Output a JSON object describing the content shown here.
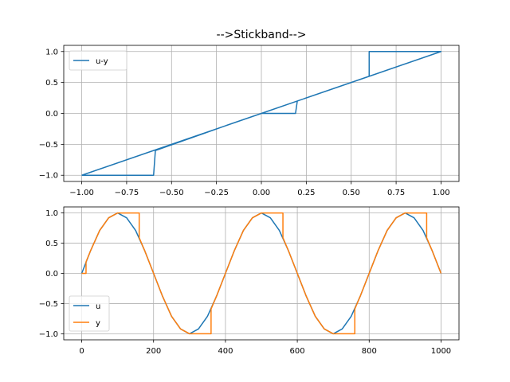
{
  "figure": {
    "title": "-->Stickband-->"
  },
  "colors": {
    "u": "#1f77b4",
    "y": "#ff7f0e",
    "grid": "#b0b0b0"
  },
  "chart_data": [
    {
      "type": "line",
      "title": "-->Stickband-->",
      "xlabel": "",
      "ylabel": "",
      "xlim": [
        -1.1,
        1.1
      ],
      "ylim": [
        -1.1,
        1.1
      ],
      "xticks": [
        "−1.00",
        "−0.75",
        "−0.50",
        "−0.25",
        "0.00",
        "0.25",
        "0.50",
        "0.75",
        "1.00"
      ],
      "yticks": [
        "−1.0",
        "−0.5",
        "0.0",
        "0.5",
        "1.0"
      ],
      "xtick_values": [
        -1.0,
        -0.75,
        -0.5,
        -0.25,
        0.0,
        0.25,
        0.5,
        0.75,
        1.0
      ],
      "ytick_values": [
        -1.0,
        -0.5,
        0.0,
        0.5,
        1.0
      ],
      "grid": true,
      "legend": "top-left",
      "series": [
        {
          "name": "u-y",
          "color": "#1f77b4",
          "x": [
            -1.0,
            -0.6,
            -0.59,
            -0.2,
            0.0,
            0.19,
            0.2,
            0.6,
            0.6,
            1.0,
            1.0,
            0.6,
            0.59,
            0.2,
            0.0,
            -0.19,
            -0.2,
            -0.6,
            -0.6,
            -1.0
          ],
          "y": [
            -1.0,
            -1.0,
            -0.6,
            -0.2,
            0.0,
            0.0,
            0.2,
            0.6,
            1.0,
            1.0,
            1.0,
            0.6,
            0.59,
            0.2,
            0.0,
            -0.19,
            -0.2,
            -0.6,
            -0.6,
            -1.0
          ]
        }
      ]
    },
    {
      "type": "line",
      "title": "",
      "xlabel": "",
      "ylabel": "",
      "xlim": [
        -50,
        1050
      ],
      "ylim": [
        -1.1,
        1.1
      ],
      "xticks": [
        "0",
        "200",
        "400",
        "600",
        "800",
        "1000"
      ],
      "yticks": [
        "−1.0",
        "−0.5",
        "0.0",
        "0.5",
        "1.0"
      ],
      "xtick_values": [
        0,
        200,
        400,
        600,
        800,
        1000
      ],
      "ytick_values": [
        -1.0,
        -0.5,
        0.0,
        0.5,
        1.0
      ],
      "grid": true,
      "legend": "bottom-left",
      "series": [
        {
          "name": "u",
          "color": "#1f77b4",
          "x": [
            0,
            25,
            50,
            75,
            100,
            125,
            150,
            175,
            200,
            225,
            250,
            275,
            300,
            325,
            350,
            375,
            400,
            425,
            450,
            475,
            500,
            525,
            550,
            575,
            600,
            625,
            650,
            675,
            700,
            725,
            750,
            775,
            800,
            825,
            850,
            875,
            900,
            925,
            950,
            975,
            1000
          ],
          "y": [
            0.0,
            0.38,
            0.71,
            0.92,
            1.0,
            0.92,
            0.71,
            0.38,
            0.0,
            -0.38,
            -0.71,
            -0.92,
            -1.0,
            -0.92,
            -0.71,
            -0.38,
            0.0,
            0.38,
            0.71,
            0.92,
            1.0,
            0.92,
            0.71,
            0.38,
            0.0,
            -0.38,
            -0.71,
            -0.92,
            -1.0,
            -0.92,
            -0.71,
            -0.38,
            0.0,
            0.38,
            0.71,
            0.92,
            1.0,
            0.92,
            0.71,
            0.38,
            0.0
          ]
        },
        {
          "name": "y",
          "color": "#ff7f0e",
          "x": [
            0,
            12,
            12,
            25,
            50,
            75,
            100,
            125,
            150,
            160,
            160,
            175,
            200,
            225,
            250,
            275,
            300,
            325,
            350,
            360,
            360,
            375,
            400,
            425,
            450,
            475,
            500,
            525,
            550,
            560,
            560,
            575,
            600,
            625,
            650,
            675,
            700,
            725,
            750,
            760,
            760,
            775,
            800,
            825,
            850,
            875,
            900,
            925,
            950,
            960,
            960,
            975,
            1000
          ],
          "y": [
            0.0,
            0.0,
            0.19,
            0.38,
            0.71,
            0.92,
            1.0,
            1.0,
            1.0,
            1.0,
            0.59,
            0.38,
            0.0,
            -0.38,
            -0.71,
            -0.92,
            -1.0,
            -1.0,
            -1.0,
            -1.0,
            -0.59,
            -0.38,
            0.0,
            0.38,
            0.71,
            0.92,
            1.0,
            1.0,
            1.0,
            1.0,
            0.59,
            0.38,
            0.0,
            -0.38,
            -0.71,
            -0.92,
            -1.0,
            -1.0,
            -1.0,
            -1.0,
            -0.59,
            -0.38,
            0.0,
            0.38,
            0.71,
            0.92,
            1.0,
            1.0,
            1.0,
            1.0,
            0.59,
            0.38,
            0.0
          ]
        }
      ]
    }
  ]
}
